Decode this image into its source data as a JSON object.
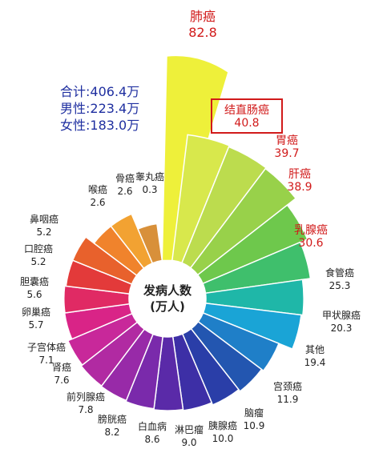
{
  "chart_data": {
    "type": "radial-bar",
    "center_label": [
      "发病人数",
      "(万人)"
    ],
    "summary": [
      {
        "label": "合计",
        "value": "406.4万"
      },
      {
        "label": "男性",
        "value": "223.4万"
      },
      {
        "label": "女性",
        "value": "183.0万"
      }
    ],
    "highlighted": "结直肠癌",
    "categories": [
      "肺癌",
      "结直肠癌",
      "胃癌",
      "肝癌",
      "乳腺癌",
      "食管癌",
      "甲状腺癌",
      "其他",
      "宫颈癌",
      "脑瘤",
      "胰腺癌",
      "淋巴瘤",
      "白血病",
      "膀胱癌",
      "前列腺癌",
      "肾癌",
      "子宫体癌",
      "卵巢癌",
      "胆囊癌",
      "口腔癌",
      "鼻咽癌",
      "喉癌",
      "骨癌",
      "睾丸癌"
    ],
    "values": [
      82.8,
      40.8,
      39.7,
      38.9,
      30.6,
      25.3,
      20.3,
      19.4,
      11.9,
      10.9,
      10.0,
      9.0,
      8.6,
      8.2,
      7.8,
      7.6,
      7.1,
      5.7,
      5.6,
      5.2,
      5.2,
      2.6,
      2.6,
      0.3
    ],
    "colors": [
      "#eef03a",
      "#d8e84c",
      "#bcdc4e",
      "#98d14a",
      "#6ec84c",
      "#3fbf6c",
      "#1fb7a8",
      "#1aa4d6",
      "#1f7fc8",
      "#2356b0",
      "#2a3ea8",
      "#3d2fa6",
      "#5a2aa8",
      "#7a2aab",
      "#982aa8",
      "#b12aa2",
      "#c8289a",
      "#d92487",
      "#e02a64",
      "#e33a3a",
      "#e8612c",
      "#f0832c",
      "#f2a232",
      "#d8903a"
    ],
    "label_colors": [
      "#d11a1a",
      "#d11a1a",
      "#d11a1a",
      "#d11a1a",
      "#d11a1a",
      "#222222",
      "#222222",
      "#222222",
      "#222222",
      "#222222",
      "#222222",
      "#222222",
      "#222222",
      "#222222",
      "#222222",
      "#222222",
      "#222222",
      "#222222",
      "#222222",
      "#222222",
      "#222222",
      "#222222",
      "#222222",
      "#222222"
    ]
  }
}
